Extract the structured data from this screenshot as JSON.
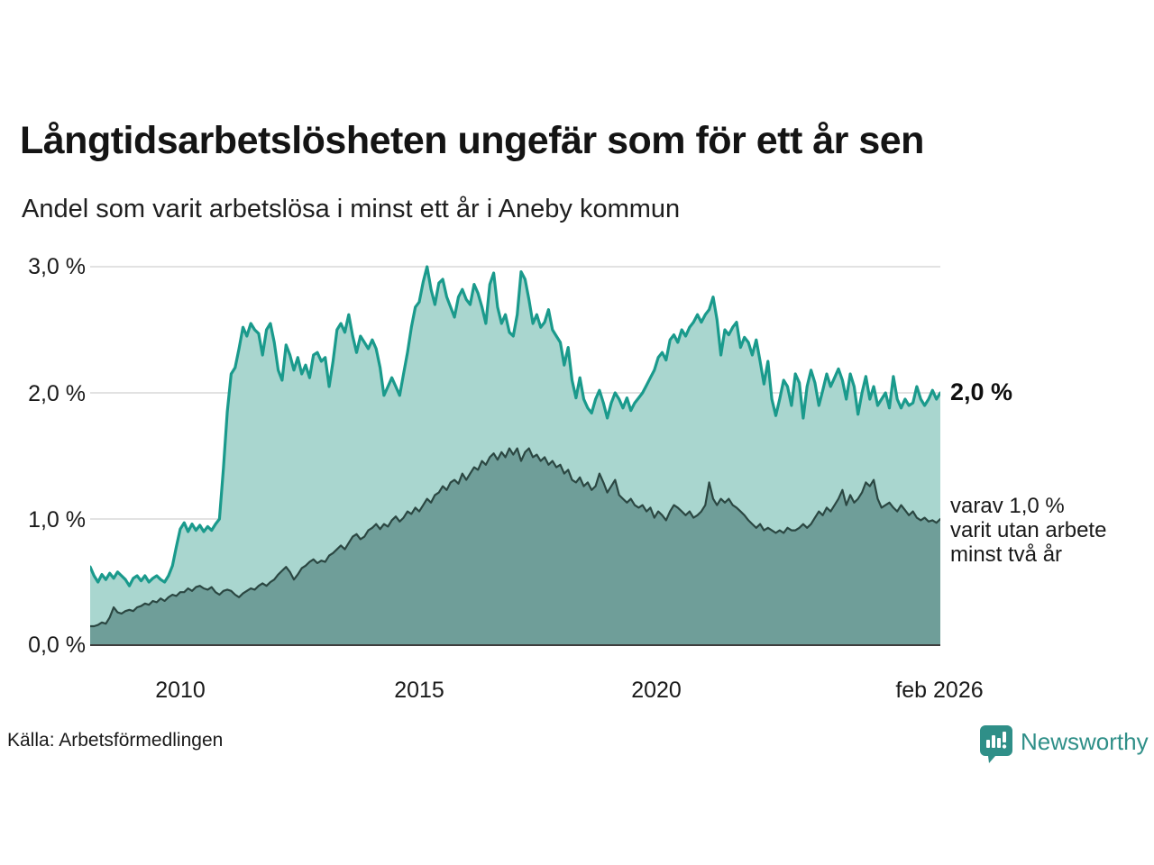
{
  "header": {
    "title": "Långtidsarbetslösheten ungefär som för ett år sen",
    "subtitle": "Andel som varit arbetslösa i minst ett år i Aneby kommun"
  },
  "footer": {
    "source": "Källa: Arbetsförmedlingen",
    "brand": "Newsworthy"
  },
  "colors": {
    "line_total": "#1a9a8c",
    "fill_total": "#a9d6cf",
    "line_two_years": "#2b4742",
    "fill_two_years": "#6f9e99",
    "gridline": "#d9d9d9",
    "axis": "#3d3d3d",
    "brand_teal": "#2f8f88"
  },
  "chart_data": {
    "type": "area",
    "title": "Långtidsarbetslösheten ungefär som för ett år sen",
    "subtitle": "Andel som varit arbetslösa i minst ett år i Aneby kommun",
    "unit": "%",
    "x_start": "2008-01",
    "x_end": "2026-02",
    "ylim": [
      0,
      3.0
    ],
    "grid": "horizontal",
    "y_tick_labels": [
      "3,0 %",
      "2,0 %",
      "1,0 %",
      "0,0 %"
    ],
    "y_tick_values": [
      3.0,
      2.0,
      1.0,
      0.0
    ],
    "x_tick_labels": [
      "2010",
      "2015",
      "2020",
      "feb 2026"
    ],
    "annotations": {
      "last_value_main": "2,0 %",
      "last_value_sub_lines": [
        "varav 1,0 %",
        "varit utan arbete",
        "minst två år"
      ]
    },
    "series": [
      {
        "name": "Andel som varit arbetslösa i minst ett år",
        "end_value": 2.0,
        "values": [
          0.62,
          0.55,
          0.5,
          0.56,
          0.52,
          0.57,
          0.53,
          0.58,
          0.55,
          0.52,
          0.47,
          0.53,
          0.55,
          0.51,
          0.55,
          0.5,
          0.53,
          0.55,
          0.52,
          0.5,
          0.55,
          0.63,
          0.78,
          0.92,
          0.97,
          0.9,
          0.96,
          0.91,
          0.95,
          0.9,
          0.94,
          0.91,
          0.96,
          1.0,
          1.4,
          1.85,
          2.15,
          2.2,
          2.35,
          2.52,
          2.45,
          2.55,
          2.5,
          2.47,
          2.3,
          2.5,
          2.55,
          2.4,
          2.18,
          2.1,
          2.38,
          2.3,
          2.18,
          2.28,
          2.15,
          2.22,
          2.12,
          2.3,
          2.32,
          2.25,
          2.28,
          2.05,
          2.25,
          2.5,
          2.55,
          2.48,
          2.62,
          2.45,
          2.32,
          2.45,
          2.4,
          2.35,
          2.42,
          2.35,
          2.2,
          1.98,
          2.05,
          2.12,
          2.05,
          1.98,
          2.15,
          2.32,
          2.52,
          2.68,
          2.72,
          2.88,
          3.0,
          2.82,
          2.7,
          2.87,
          2.9,
          2.76,
          2.68,
          2.6,
          2.76,
          2.82,
          2.74,
          2.7,
          2.86,
          2.79,
          2.68,
          2.55,
          2.86,
          2.95,
          2.68,
          2.55,
          2.62,
          2.48,
          2.45,
          2.62,
          2.96,
          2.9,
          2.74,
          2.55,
          2.62,
          2.52,
          2.56,
          2.66,
          2.5,
          2.45,
          2.4,
          2.22,
          2.36,
          2.1,
          1.96,
          2.12,
          1.95,
          1.88,
          1.84,
          1.95,
          2.02,
          1.92,
          1.8,
          1.92,
          2.0,
          1.95,
          1.88,
          1.96,
          1.86,
          1.92,
          1.96,
          2.0,
          2.06,
          2.12,
          2.18,
          2.28,
          2.32,
          2.26,
          2.42,
          2.46,
          2.4,
          2.5,
          2.45,
          2.52,
          2.56,
          2.62,
          2.56,
          2.62,
          2.66,
          2.76,
          2.58,
          2.3,
          2.5,
          2.46,
          2.52,
          2.56,
          2.36,
          2.44,
          2.4,
          2.3,
          2.42,
          2.25,
          2.07,
          2.25,
          1.95,
          1.82,
          1.95,
          2.1,
          2.05,
          1.9,
          2.15,
          2.08,
          1.8,
          2.05,
          2.18,
          2.08,
          1.9,
          2.02,
          2.15,
          2.05,
          2.12,
          2.19,
          2.1,
          1.95,
          2.15,
          2.05,
          1.83,
          2.0,
          2.13,
          1.95,
          2.05,
          1.9,
          1.95,
          2.0,
          1.88,
          2.13,
          1.95,
          1.88,
          1.95,
          1.9,
          1.92,
          2.05,
          1.95,
          1.9,
          1.95,
          2.02,
          1.95,
          2.0
        ]
      },
      {
        "name": "varav utan arbete minst två år",
        "end_value": 1.0,
        "values": [
          0.15,
          0.15,
          0.16,
          0.18,
          0.17,
          0.22,
          0.3,
          0.26,
          0.25,
          0.27,
          0.28,
          0.27,
          0.3,
          0.31,
          0.33,
          0.32,
          0.35,
          0.34,
          0.37,
          0.35,
          0.38,
          0.4,
          0.39,
          0.42,
          0.42,
          0.45,
          0.43,
          0.46,
          0.47,
          0.45,
          0.44,
          0.46,
          0.42,
          0.4,
          0.43,
          0.44,
          0.43,
          0.4,
          0.38,
          0.41,
          0.43,
          0.45,
          0.44,
          0.47,
          0.49,
          0.47,
          0.5,
          0.52,
          0.56,
          0.59,
          0.62,
          0.58,
          0.52,
          0.56,
          0.61,
          0.63,
          0.66,
          0.68,
          0.65,
          0.67,
          0.66,
          0.71,
          0.73,
          0.76,
          0.79,
          0.76,
          0.81,
          0.86,
          0.88,
          0.84,
          0.86,
          0.91,
          0.93,
          0.96,
          0.92,
          0.96,
          0.94,
          0.99,
          1.02,
          0.98,
          1.01,
          1.06,
          1.04,
          1.09,
          1.06,
          1.11,
          1.16,
          1.13,
          1.19,
          1.21,
          1.26,
          1.23,
          1.29,
          1.31,
          1.28,
          1.36,
          1.31,
          1.36,
          1.41,
          1.39,
          1.46,
          1.43,
          1.49,
          1.52,
          1.47,
          1.53,
          1.49,
          1.56,
          1.51,
          1.56,
          1.46,
          1.53,
          1.56,
          1.49,
          1.51,
          1.46,
          1.49,
          1.43,
          1.46,
          1.41,
          1.43,
          1.36,
          1.39,
          1.31,
          1.29,
          1.33,
          1.26,
          1.29,
          1.23,
          1.26,
          1.36,
          1.29,
          1.21,
          1.26,
          1.31,
          1.19,
          1.16,
          1.13,
          1.16,
          1.11,
          1.09,
          1.11,
          1.06,
          1.09,
          1.01,
          1.06,
          1.03,
          0.99,
          1.06,
          1.11,
          1.09,
          1.06,
          1.03,
          1.06,
          1.01,
          1.03,
          1.06,
          1.11,
          1.29,
          1.16,
          1.11,
          1.16,
          1.13,
          1.16,
          1.11,
          1.09,
          1.06,
          1.03,
          0.99,
          0.96,
          0.93,
          0.96,
          0.91,
          0.93,
          0.91,
          0.89,
          0.91,
          0.89,
          0.93,
          0.91,
          0.91,
          0.93,
          0.96,
          0.93,
          0.96,
          1.01,
          1.06,
          1.03,
          1.09,
          1.06,
          1.11,
          1.16,
          1.23,
          1.11,
          1.19,
          1.13,
          1.16,
          1.21,
          1.29,
          1.26,
          1.31,
          1.16,
          1.09,
          1.11,
          1.13,
          1.09,
          1.06,
          1.11,
          1.07,
          1.03,
          1.06,
          1.01,
          0.99,
          1.01,
          0.98,
          0.99,
          0.97,
          1.0
        ]
      }
    ]
  }
}
